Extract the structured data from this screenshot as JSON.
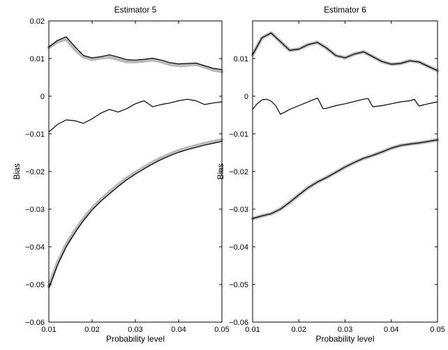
{
  "chart_data": [
    {
      "type": "line",
      "title": "Estimator 5",
      "xlabel": "Probability level",
      "ylabel": "Bias",
      "xlim": [
        0.01,
        0.05
      ],
      "ylim": [
        -0.06,
        0.02
      ],
      "x_ticks": [
        "0.01",
        "0.02",
        "0.03",
        "0.04",
        "0.05"
      ],
      "y_ticks": [
        "−0.06",
        "−0.05",
        "−0.04",
        "−0.03",
        "−0.02",
        "−0.01",
        "0",
        "0.01",
        "0.02"
      ],
      "x_tick_values": [
        0.01,
        0.02,
        0.03,
        0.04,
        0.05
      ],
      "y_tick_values": [
        -0.06,
        -0.05,
        -0.04,
        -0.03,
        -0.02,
        -0.01,
        0,
        0.01,
        0.02
      ],
      "grid": false,
      "series": [
        {
          "color": "#b8b8b8",
          "width": 5,
          "x": [
            0.01,
            0.012,
            0.014,
            0.016,
            0.018,
            0.02,
            0.022,
            0.024,
            0.026,
            0.028,
            0.03,
            0.032,
            0.034,
            0.036,
            0.038,
            0.04,
            0.042,
            0.044,
            0.046,
            0.048,
            0.05
          ],
          "y": [
            0.013,
            0.0145,
            0.0152,
            0.0125,
            0.0105,
            0.0098,
            0.0102,
            0.0105,
            0.0098,
            0.0092,
            0.0092,
            0.0094,
            0.0097,
            0.0092,
            0.0085,
            0.0082,
            0.0083,
            0.0085,
            0.0078,
            0.007,
            0.0066
          ]
        },
        {
          "color": "#000000",
          "width": 1.2,
          "x": [
            0.01,
            0.012,
            0.014,
            0.016,
            0.018,
            0.02,
            0.022,
            0.024,
            0.026,
            0.028,
            0.03,
            0.032,
            0.034,
            0.036,
            0.038,
            0.04,
            0.042,
            0.044,
            0.046,
            0.048,
            0.05
          ],
          "y": [
            0.013,
            0.0148,
            0.0158,
            0.0132,
            0.0108,
            0.0102,
            0.0105,
            0.011,
            0.0104,
            0.0097,
            0.0096,
            0.0098,
            0.0101,
            0.0096,
            0.0089,
            0.0086,
            0.0087,
            0.0088,
            0.0081,
            0.0074,
            0.0071
          ]
        },
        {
          "color": "#000000",
          "width": 1.2,
          "x": [
            0.01,
            0.012,
            0.014,
            0.016,
            0.018,
            0.02,
            0.022,
            0.024,
            0.026,
            0.028,
            0.03,
            0.032,
            0.034,
            0.036,
            0.038,
            0.04,
            0.042,
            0.044,
            0.046,
            0.048,
            0.05
          ],
          "y": [
            -0.0095,
            -0.0075,
            -0.0063,
            -0.0065,
            -0.0072,
            -0.006,
            -0.0045,
            -0.0035,
            -0.0042,
            -0.0033,
            -0.002,
            -0.0012,
            -0.0028,
            -0.0022,
            -0.0018,
            -0.0012,
            -0.0008,
            -0.0012,
            -0.0022,
            -0.0018,
            -0.0015
          ]
        },
        {
          "color": "#b8b8b8",
          "width": 5,
          "x": [
            0.01,
            0.012,
            0.014,
            0.016,
            0.018,
            0.02,
            0.022,
            0.024,
            0.026,
            0.028,
            0.03,
            0.032,
            0.034,
            0.036,
            0.038,
            0.04,
            0.042,
            0.044,
            0.046,
            0.048,
            0.05
          ],
          "y": [
            -0.0505,
            -0.0443,
            -0.0395,
            -0.0358,
            -0.0326,
            -0.0298,
            -0.0275,
            -0.0255,
            -0.0236,
            -0.0218,
            -0.0203,
            -0.0189,
            -0.0176,
            -0.0164,
            -0.0154,
            -0.0145,
            -0.0138,
            -0.0132,
            -0.0126,
            -0.0121,
            -0.0116
          ]
        },
        {
          "color": "#000000",
          "width": 1.2,
          "x": [
            0.01,
            0.012,
            0.014,
            0.016,
            0.018,
            0.02,
            0.022,
            0.024,
            0.026,
            0.028,
            0.03,
            0.032,
            0.034,
            0.036,
            0.038,
            0.04,
            0.042,
            0.044,
            0.046,
            0.048,
            0.05
          ],
          "y": [
            -0.051,
            -0.0448,
            -0.04,
            -0.0363,
            -0.033,
            -0.0302,
            -0.0279,
            -0.0259,
            -0.024,
            -0.0222,
            -0.0207,
            -0.0193,
            -0.018,
            -0.0168,
            -0.0158,
            -0.0149,
            -0.0142,
            -0.0136,
            -0.013,
            -0.0125,
            -0.012
          ]
        }
      ]
    },
    {
      "type": "line",
      "title": "Estimator 6",
      "xlabel": "Probability level",
      "ylabel": "Bias",
      "xlim": [
        0.01,
        0.05
      ],
      "ylim": [
        -0.06,
        0.02
      ],
      "x_ticks": [
        "0.01",
        "0.02",
        "0.03",
        "0.04",
        "0.05"
      ],
      "y_ticks": [
        "−0.06",
        "−0.05",
        "−0.04",
        "−0.03",
        "−0.02",
        "−0.01",
        "0",
        "0.01"
      ],
      "x_tick_values": [
        0.01,
        0.02,
        0.03,
        0.04,
        0.05
      ],
      "y_tick_values": [
        -0.06,
        -0.05,
        -0.04,
        -0.03,
        -0.02,
        -0.01,
        0,
        0.01
      ],
      "grid": false,
      "series": [
        {
          "color": "#b8b8b8",
          "width": 5,
          "x": [
            0.01,
            0.012,
            0.014,
            0.016,
            0.018,
            0.02,
            0.022,
            0.024,
            0.026,
            0.028,
            0.03,
            0.032,
            0.034,
            0.036,
            0.038,
            0.04,
            0.042,
            0.044,
            0.046,
            0.048,
            0.05
          ],
          "y": [
            0.011,
            0.0155,
            0.0168,
            0.0145,
            0.0122,
            0.0125,
            0.0137,
            0.0143,
            0.0128,
            0.0108,
            0.0102,
            0.0112,
            0.0118,
            0.0105,
            0.0092,
            0.0085,
            0.0087,
            0.0094,
            0.0091,
            0.0079,
            0.0068
          ]
        },
        {
          "color": "#000000",
          "width": 1.2,
          "x": [
            0.01,
            0.012,
            0.014,
            0.016,
            0.018,
            0.02,
            0.022,
            0.024,
            0.026,
            0.028,
            0.03,
            0.032,
            0.034,
            0.036,
            0.038,
            0.04,
            0.042,
            0.044,
            0.046,
            0.048,
            0.05
          ],
          "y": [
            0.011,
            0.0155,
            0.0168,
            0.0145,
            0.0122,
            0.0125,
            0.0137,
            0.0143,
            0.0128,
            0.0108,
            0.0102,
            0.0112,
            0.0118,
            0.0105,
            0.0092,
            0.0085,
            0.0087,
            0.0094,
            0.0091,
            0.0079,
            0.0068
          ]
        },
        {
          "color": "#000000",
          "width": 1.2,
          "x": [
            0.01,
            0.011,
            0.012,
            0.013,
            0.014,
            0.015,
            0.016,
            0.017,
            0.018,
            0.02,
            0.022,
            0.024,
            0.0245,
            0.0252,
            0.026,
            0.028,
            0.03,
            0.032,
            0.034,
            0.035,
            0.0355,
            0.036,
            0.038,
            0.04,
            0.042,
            0.044,
            0.045,
            0.0455,
            0.046,
            0.048,
            0.05
          ],
          "y": [
            -0.0035,
            -0.002,
            -0.001,
            -0.0008,
            -0.0013,
            -0.0025,
            -0.0048,
            -0.0042,
            -0.0035,
            -0.0025,
            -0.0015,
            -0.0005,
            -0.0015,
            -0.0033,
            -0.0032,
            -0.0025,
            -0.002,
            -0.0014,
            -0.0008,
            -0.0006,
            -0.0018,
            -0.0028,
            -0.0025,
            -0.002,
            -0.0015,
            -0.0012,
            -0.0008,
            -0.0018,
            -0.0026,
            -0.002,
            -0.0015
          ]
        },
        {
          "color": "#b8b8b8",
          "width": 5,
          "x": [
            0.01,
            0.012,
            0.014,
            0.016,
            0.018,
            0.02,
            0.022,
            0.024,
            0.026,
            0.028,
            0.03,
            0.032,
            0.034,
            0.036,
            0.038,
            0.04,
            0.042,
            0.044,
            0.046,
            0.048,
            0.05
          ],
          "y": [
            -0.0325,
            -0.0318,
            -0.0312,
            -0.03,
            -0.0282,
            -0.0262,
            -0.0243,
            -0.0228,
            -0.0216,
            -0.0202,
            -0.0188,
            -0.0176,
            -0.0165,
            -0.0157,
            -0.0148,
            -0.0138,
            -0.0131,
            -0.0127,
            -0.0124,
            -0.012,
            -0.0116
          ]
        },
        {
          "color": "#000000",
          "width": 1.2,
          "x": [
            0.01,
            0.012,
            0.014,
            0.016,
            0.018,
            0.02,
            0.022,
            0.024,
            0.026,
            0.028,
            0.03,
            0.032,
            0.034,
            0.036,
            0.038,
            0.04,
            0.042,
            0.044,
            0.046,
            0.048,
            0.05
          ],
          "y": [
            -0.0325,
            -0.0318,
            -0.0312,
            -0.03,
            -0.0282,
            -0.0262,
            -0.0243,
            -0.0228,
            -0.0216,
            -0.0202,
            -0.0188,
            -0.0176,
            -0.0165,
            -0.0157,
            -0.0148,
            -0.0138,
            -0.0131,
            -0.0127,
            -0.0124,
            -0.012,
            -0.0116
          ]
        }
      ]
    }
  ]
}
